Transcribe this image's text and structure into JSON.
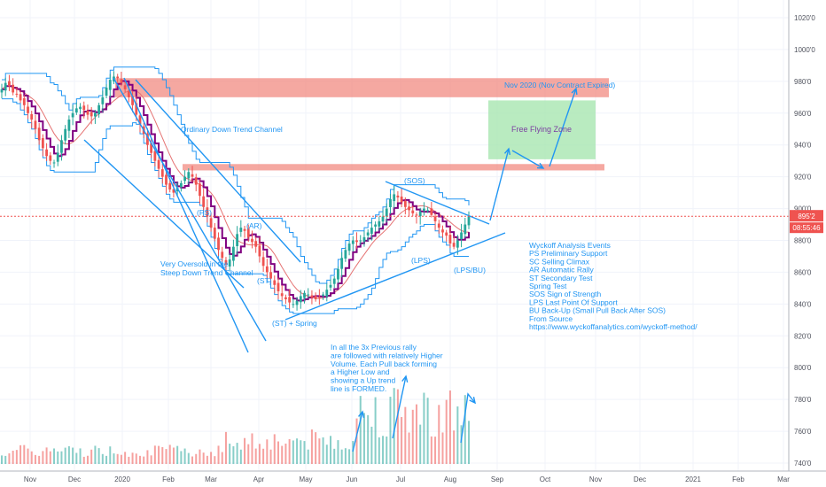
{
  "chart_data": {
    "type": "candlestick",
    "title": "",
    "ylim": [
      7400,
      10300
    ],
    "y_ticks": [
      "1020'0",
      "1000'0",
      "980'0",
      "960'0",
      "940'0",
      "920'0",
      "900'0",
      "880'0",
      "860'0",
      "840'0",
      "820'0",
      "800'0",
      "780'0",
      "760'0",
      "740'0"
    ],
    "x_ticks": [
      "Nov",
      "Dec",
      "2020",
      "Feb",
      "Mar",
      "Apr",
      "May",
      "Jun",
      "Jul",
      "Aug",
      "Sep",
      "Oct",
      "Nov",
      "Dec",
      "2021",
      "Feb",
      "Mar"
    ],
    "last_price": "895'2",
    "countdown": "08:55:46",
    "colors": {
      "up": "#26a69a",
      "down": "#ef5350",
      "accent": "#2196f3",
      "purple": "#800080",
      "zone": "#f28b82",
      "green_zone": "#a8e6b0"
    },
    "close_series": [
      9750,
      9790,
      9770,
      9730,
      9720,
      9680,
      9650,
      9600,
      9560,
      9500,
      9430,
      9380,
      9330,
      9300,
      9290,
      9350,
      9430,
      9500,
      9560,
      9600,
      9630,
      9640,
      9620,
      9590,
      9580,
      9600,
      9650,
      9700,
      9760,
      9810,
      9830,
      9820,
      9790,
      9750,
      9700,
      9650,
      9590,
      9530,
      9470,
      9400,
      9350,
      9300,
      9250,
      9200,
      9150,
      9120,
      9100,
      9130,
      9160,
      9200,
      9230,
      9200,
      9150,
      9080,
      9010,
      8950,
      8880,
      8810,
      8740,
      8690,
      8650,
      8680,
      8760,
      8840,
      8880,
      8860,
      8820,
      8790,
      8760,
      8700,
      8640,
      8600,
      8560,
      8520,
      8480,
      8450,
      8430,
      8410,
      8400,
      8420,
      8450,
      8470,
      8460,
      8440,
      8430,
      8440,
      8460,
      8490,
      8520,
      8560,
      8620,
      8690,
      8740,
      8780,
      8800,
      8790,
      8800,
      8820,
      8850,
      8880,
      8900,
      8920,
      8950,
      9000,
      9060,
      9090,
      9070,
      9040,
      9010,
      8990,
      8970,
      8960,
      8980,
      9000,
      8990,
      8960,
      8920,
      8880,
      8850,
      8830,
      8780,
      8760,
      8800,
      8850,
      8900,
      8952
    ]
  },
  "annotations": {
    "ordinary_channel": "Ordinary Down Trend Channel",
    "very_oversold": "Very Oversold in the\nSteep Down Trend Channel",
    "ps": "(PS)",
    "ar": "(AR)",
    "st": "(ST)",
    "st_spring": "(ST) + Spring",
    "sos": "(SOS)",
    "lps": "(LPS)",
    "lps_bu": "(LPS/BU)",
    "nov_2020": "Nov 2020 (Nov Contract Expired)",
    "free_flying": "Free Flying Zone",
    "legend": [
      "Wyckoff Analysis Events",
      "PS Preliminary Support",
      "SC Selling Climax",
      "AR Automatic Rally",
      "ST Secondary Test",
      "Spring Test",
      "SOS Sign of Strength",
      "LPS Last Point Of Support",
      "BU Back-Up (Small Pull Back After SOS)",
      "",
      "From Source",
      "https://www.wyckoffanalytics.com/wyckoff-method/"
    ],
    "volume_note": [
      "In all the 3x Previous rally",
      "are followed with relatively Higher",
      "Volume. Each Pull back forming",
      "a Higher Low and",
      "showing a Up trend",
      "line is FORMED."
    ]
  }
}
